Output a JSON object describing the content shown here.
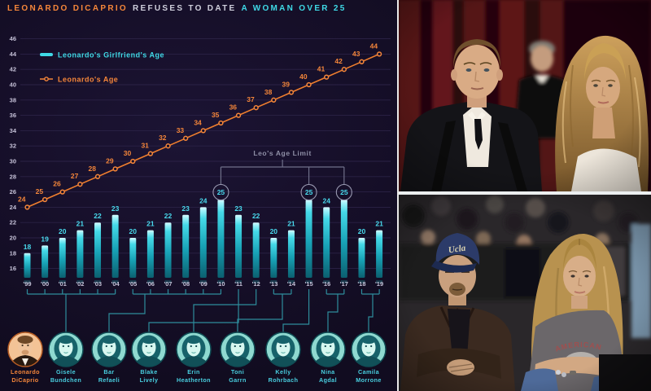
{
  "title": {
    "part1": "LEONARDO DICAPRIO",
    "part2": "REFUSES TO DATE",
    "part3": "A WOMAN OVER 25"
  },
  "colors": {
    "background": "#160f29",
    "cyan": "#3fd9e6",
    "orange": "#f5863a",
    "grid": "#2b2246",
    "axis_text": "#c6c2d8",
    "annotation_text": "#8f8fa6",
    "connector": "#2e8d9c"
  },
  "chart_data": {
    "type": "bar-line-combo",
    "categories": [
      "'99",
      "'00",
      "'01",
      "'02",
      "'03",
      "'04",
      "'05",
      "'06",
      "'07",
      "'08",
      "'09",
      "'10",
      "'11",
      "'12",
      "'13",
      "'14",
      "'15",
      "'16",
      "'17",
      "'18",
      "'19"
    ],
    "series": [
      {
        "name": "Leonardo's Girlfriend's Age",
        "type": "bar",
        "color": "#3fd9e6",
        "values": [
          18,
          19,
          20,
          21,
          22,
          23,
          20,
          21,
          22,
          23,
          24,
          25,
          23,
          22,
          20,
          21,
          25,
          24,
          25,
          20,
          21
        ]
      },
      {
        "name": "Leonardo's Age",
        "type": "line",
        "color": "#f5863a",
        "values": [
          24,
          25,
          26,
          27,
          28,
          29,
          30,
          31,
          32,
          33,
          34,
          35,
          36,
          37,
          38,
          39,
          40,
          41,
          42,
          43,
          44
        ]
      }
    ],
    "ylim": [
      16,
      46
    ],
    "ytick_step": 2,
    "grid": true,
    "legend_position": "top-left",
    "annotation": {
      "label": "Leo's Age Limit",
      "circled_categories": [
        "'10",
        "'15",
        "'17"
      ]
    }
  },
  "people": [
    {
      "line1": "Leonardo",
      "line2": "DiCaprio",
      "highlight": true
    },
    {
      "line1": "Gisele",
      "line2": "Bundchen",
      "years": [
        "'99",
        "'04"
      ]
    },
    {
      "line1": "Bar",
      "line2": "Refaeli",
      "years": [
        "'05",
        "'10"
      ]
    },
    {
      "line1": "Blake",
      "line2": "Lively",
      "years": [
        "'11"
      ]
    },
    {
      "line1": "Erin",
      "line2": "Heatherton",
      "years": [
        "'12"
      ]
    },
    {
      "line1": "Toni",
      "line2": "Garrn",
      "years": [
        "'13",
        "'14"
      ]
    },
    {
      "line1": "Kelly",
      "line2": "Rohrbach",
      "years": [
        "'15"
      ]
    },
    {
      "line1": "Nina",
      "line2": "Agdal",
      "years": [
        "'16",
        "'17"
      ]
    },
    {
      "line1": "Camila",
      "line2": "Morrone",
      "years": [
        "'18",
        "'19"
      ]
    }
  ],
  "photos": [
    {
      "alt": "Leonardo DiCaprio in a tuxedo with Gisele Bundchen on a red carpet"
    },
    {
      "alt": "Leonardo DiCaprio wearing a Ucla cap courtside next to Bar Refaeli",
      "cap_text": "Ucla",
      "shirt_text": "AMERICAN"
    }
  ]
}
